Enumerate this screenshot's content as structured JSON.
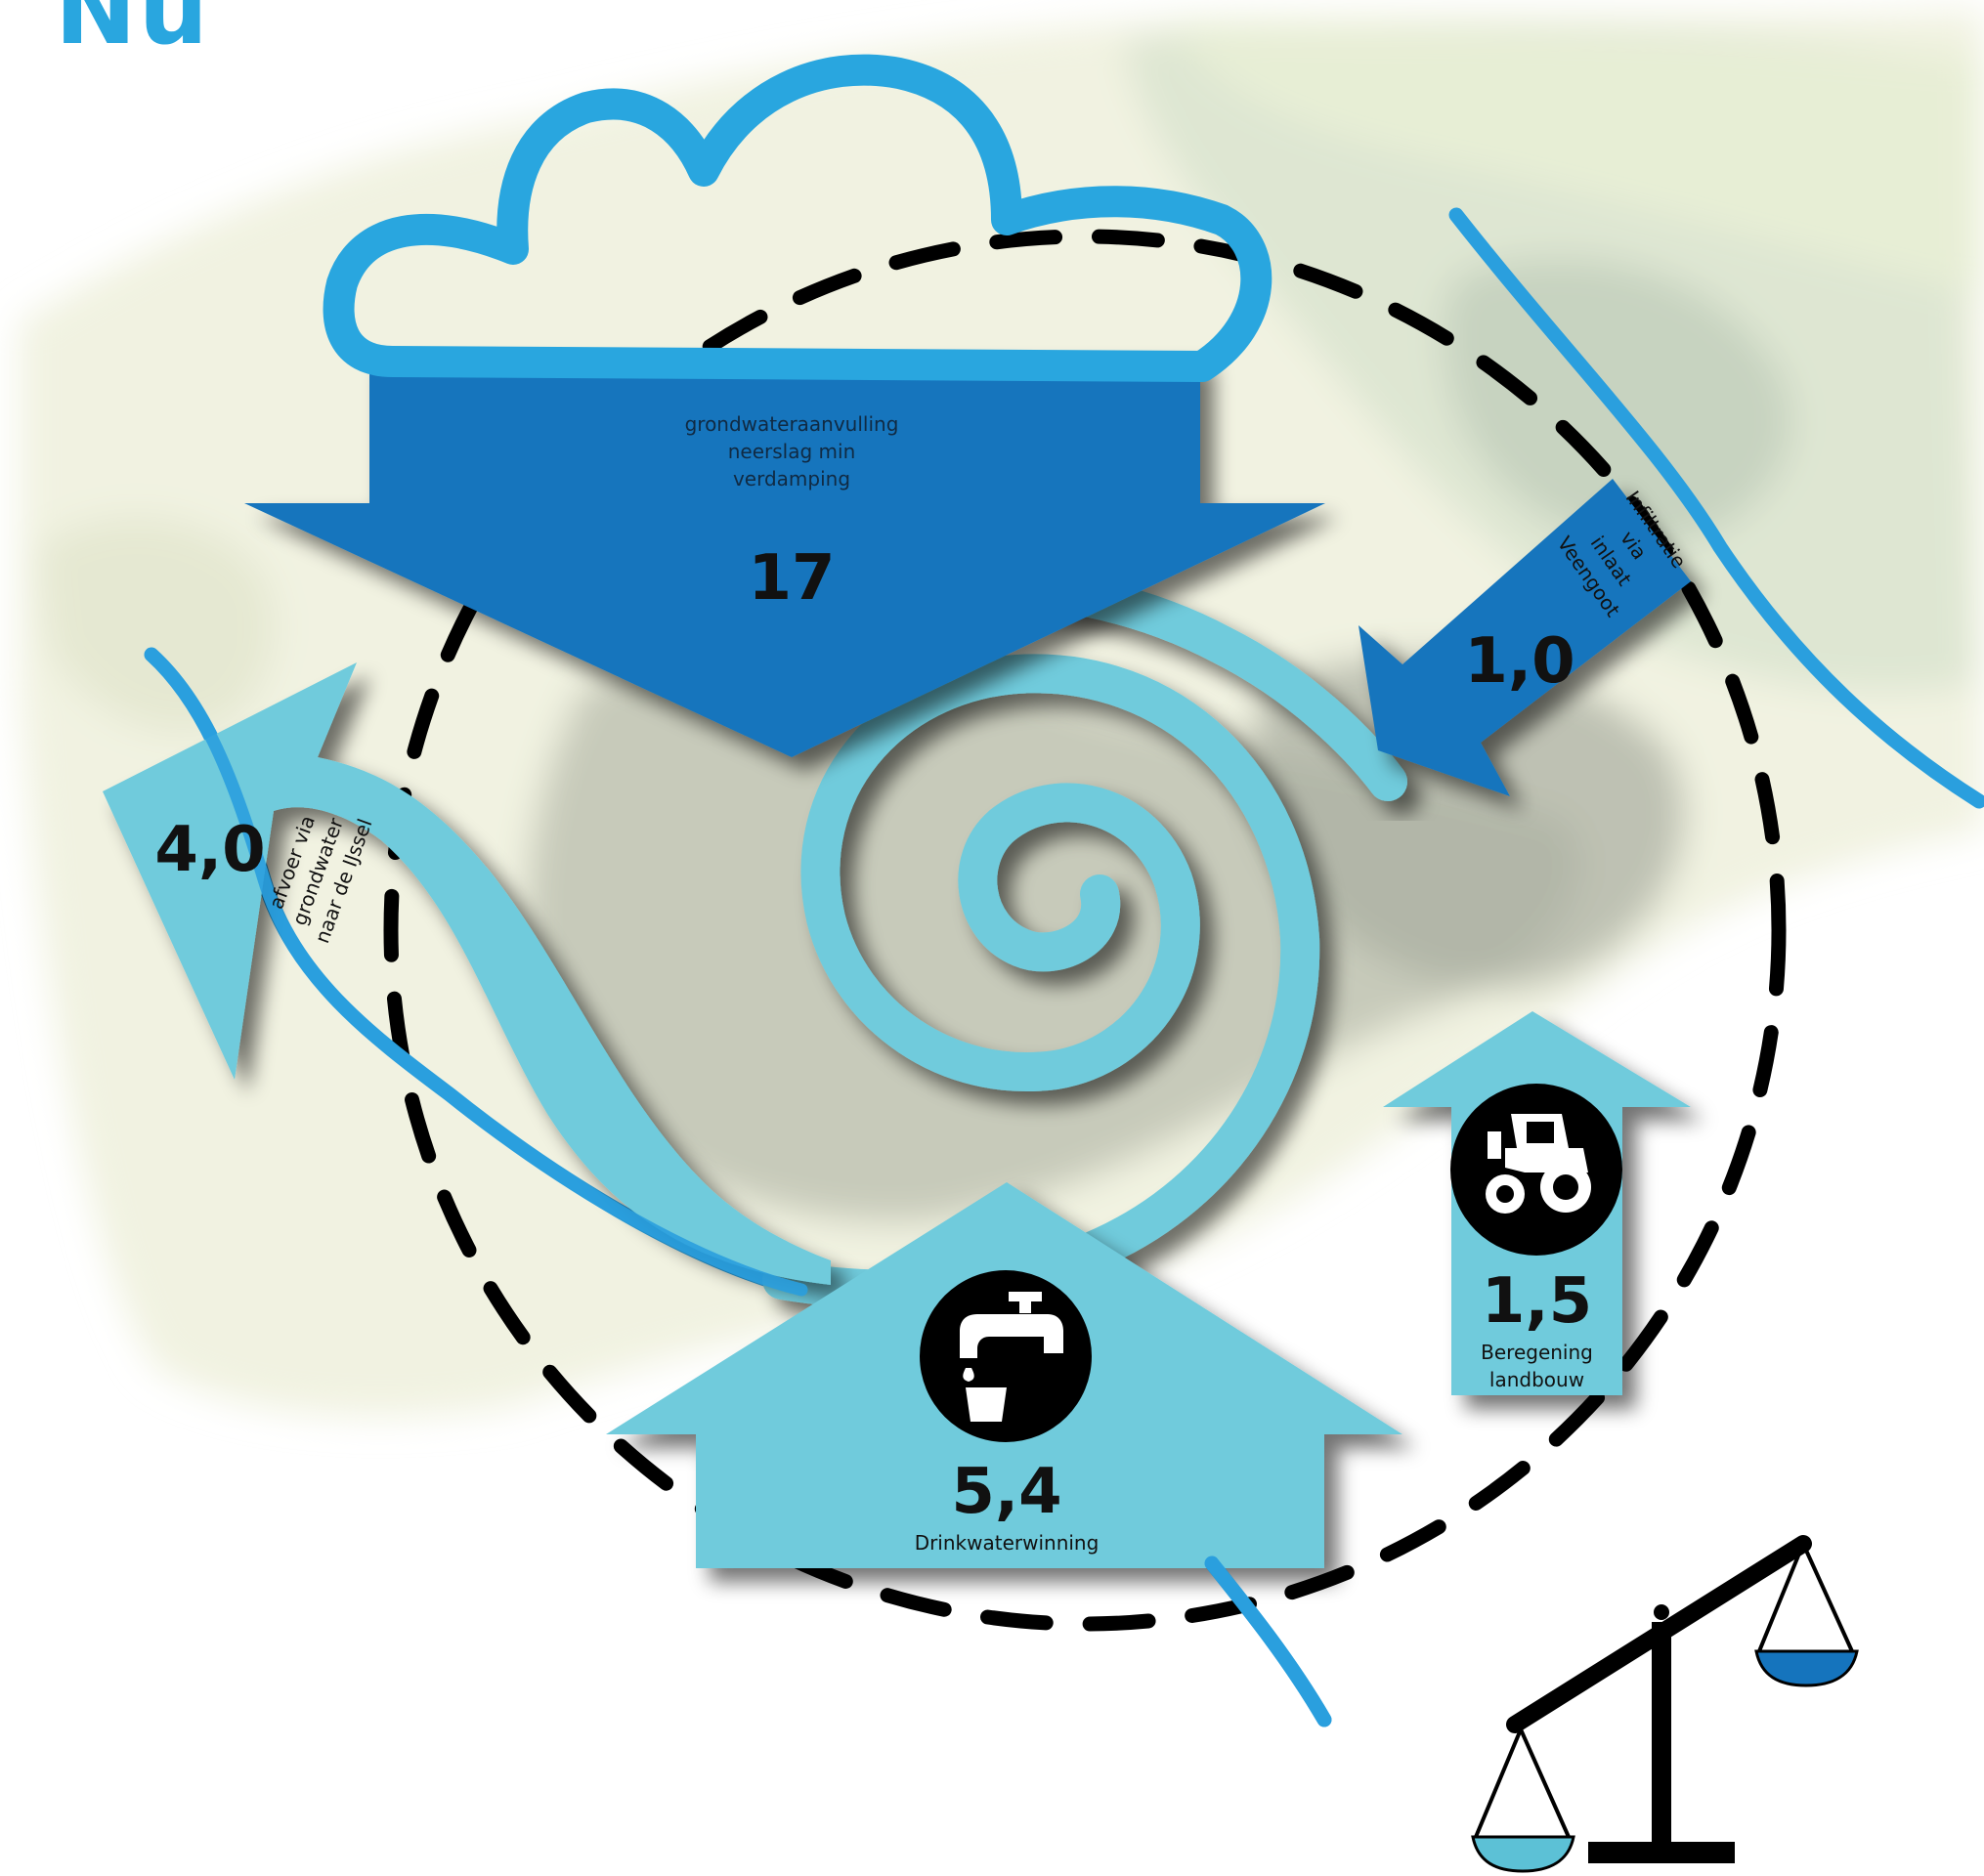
{
  "title": "Nu",
  "flows": {
    "recharge": {
      "label_lines": [
        "grondwateraanvulling",
        "neerslag min",
        "verdamping"
      ],
      "value": "17"
    },
    "infiltration": {
      "label_lines": [
        "Infiltratie",
        "via",
        "inlaat",
        "Veengoot"
      ],
      "value": "1,0"
    },
    "discharge": {
      "label_lines": [
        "afvoer via",
        "grondwater",
        "naar de IJssel"
      ],
      "value": "4,0"
    },
    "drinking_water": {
      "label": "Drinkwaterwinning",
      "value": "5,4",
      "icon": "water-tap-icon"
    },
    "irrigation": {
      "label_lines": [
        "Beregening",
        "landbouw"
      ],
      "value": "1,5",
      "icon": "tractor-icon"
    }
  },
  "icons": [
    "cloud-icon",
    "spiral-icon",
    "balance-scale-icon",
    "water-tap-icon",
    "tractor-icon"
  ],
  "colors": {
    "title": "#29a6df",
    "cloud": "#29a6df",
    "dark_arrow": "#1574bd",
    "light_arrow": "#6fcbdc",
    "river": "#2a9fde",
    "scale_bowl_left": "#5cc1d6",
    "scale_bowl_right": "#1574bd",
    "dashed_circle": "#000000"
  }
}
